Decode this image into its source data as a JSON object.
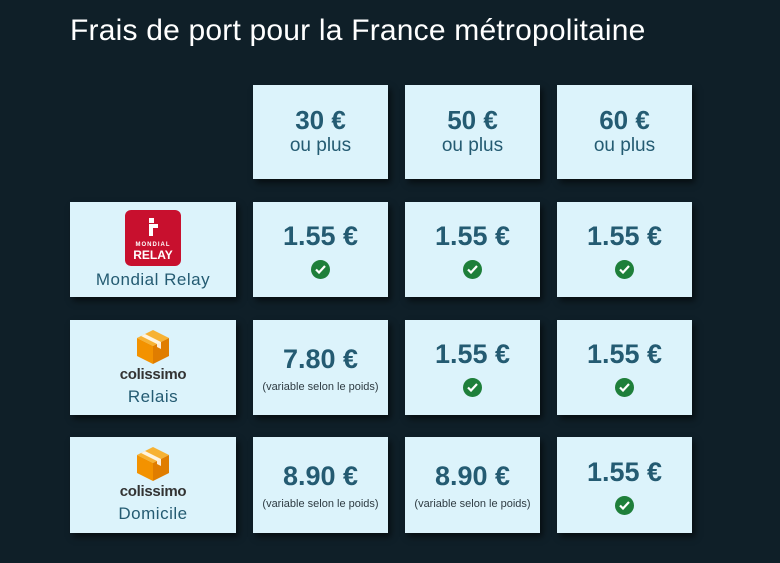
{
  "title": "Frais de port pour la France métropolitaine",
  "headers": [
    {
      "amount": "30 €",
      "sub": "ou plus"
    },
    {
      "amount": "50 €",
      "sub": "ou plus"
    },
    {
      "amount": "60 €",
      "sub": "ou plus"
    }
  ],
  "rows": [
    {
      "carrier": {
        "logo_lines": [
          "MONDIAL",
          "RELAY"
        ],
        "label": "Mondial Relay"
      },
      "cells": [
        {
          "price": "1.55 €",
          "note": "",
          "check": true
        },
        {
          "price": "1.55 €",
          "note": "",
          "check": true
        },
        {
          "price": "1.55 €",
          "note": "",
          "check": true
        }
      ]
    },
    {
      "carrier": {
        "logo_word": "colissimo",
        "label": "Relais"
      },
      "cells": [
        {
          "price": "7.80 €",
          "note": "(variable selon le poids)",
          "check": false
        },
        {
          "price": "1.55 €",
          "note": "",
          "check": true
        },
        {
          "price": "1.55 €",
          "note": "",
          "check": true
        }
      ]
    },
    {
      "carrier": {
        "logo_word": "colissimo",
        "label": "Domicile"
      },
      "cells": [
        {
          "price": "8.90 €",
          "note": "(variable selon le poids)",
          "check": false
        },
        {
          "price": "8.90 €",
          "note": "(variable selon le poids)",
          "check": false
        },
        {
          "price": "1.55 €",
          "note": "",
          "check": true
        }
      ]
    }
  ],
  "icons": {
    "check": "check-circle-icon",
    "mondial_relay": "mondial-relay-logo",
    "colissimo": "colissimo-box-logo"
  },
  "colors": {
    "background": "#0f1f28",
    "cell": "#dcf3fb",
    "text": "#245b72",
    "check": "#1e7f3a",
    "mondial_red": "#c8102e",
    "colissimo_orange": "#f39200"
  }
}
